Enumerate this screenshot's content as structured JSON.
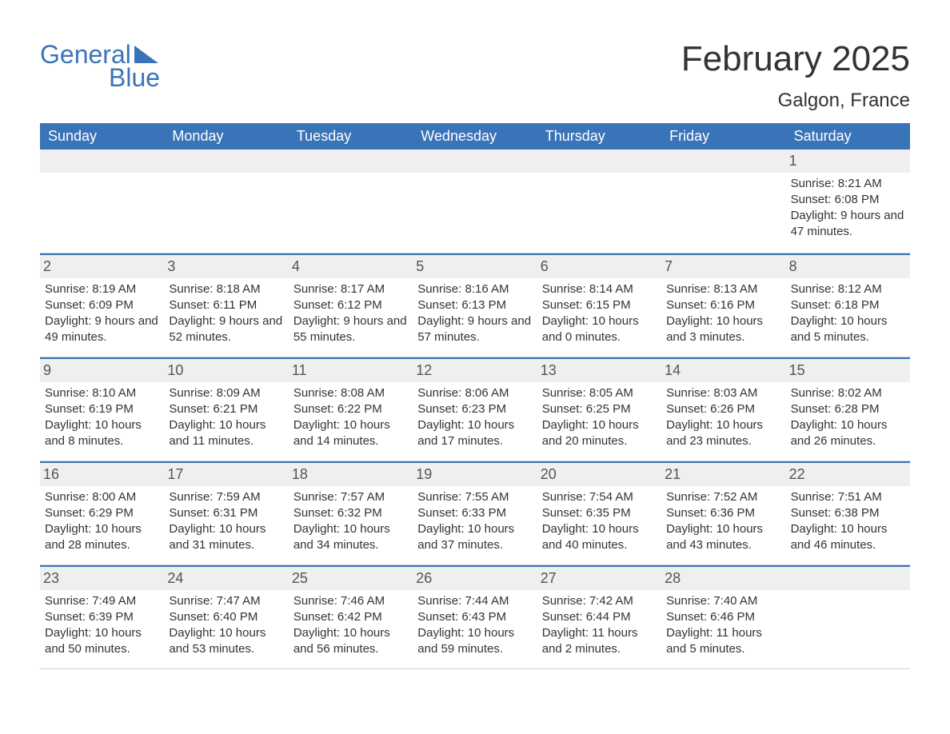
{
  "logo": {
    "part1": "General",
    "part2": "Blue"
  },
  "title": "February 2025",
  "location": "Galgon, France",
  "colors": {
    "accent": "#3a74b8",
    "header_bg": "#3a74b8",
    "header_text": "#ffffff",
    "daynum_bg": "#efefef",
    "text": "#333333",
    "rule": "#cfcfcf",
    "bg": "#ffffff"
  },
  "daynames": [
    "Sunday",
    "Monday",
    "Tuesday",
    "Wednesday",
    "Thursday",
    "Friday",
    "Saturday"
  ],
  "type": "table",
  "weeks": [
    [
      {
        "empty": true
      },
      {
        "empty": true
      },
      {
        "empty": true
      },
      {
        "empty": true
      },
      {
        "empty": true
      },
      {
        "empty": true
      },
      {
        "date": "1",
        "sunrise": "Sunrise: 8:21 AM",
        "sunset": "Sunset: 6:08 PM",
        "daylight": "Daylight: 9 hours and 47 minutes."
      }
    ],
    [
      {
        "date": "2",
        "sunrise": "Sunrise: 8:19 AM",
        "sunset": "Sunset: 6:09 PM",
        "daylight": "Daylight: 9 hours and 49 minutes."
      },
      {
        "date": "3",
        "sunrise": "Sunrise: 8:18 AM",
        "sunset": "Sunset: 6:11 PM",
        "daylight": "Daylight: 9 hours and 52 minutes."
      },
      {
        "date": "4",
        "sunrise": "Sunrise: 8:17 AM",
        "sunset": "Sunset: 6:12 PM",
        "daylight": "Daylight: 9 hours and 55 minutes."
      },
      {
        "date": "5",
        "sunrise": "Sunrise: 8:16 AM",
        "sunset": "Sunset: 6:13 PM",
        "daylight": "Daylight: 9 hours and 57 minutes."
      },
      {
        "date": "6",
        "sunrise": "Sunrise: 8:14 AM",
        "sunset": "Sunset: 6:15 PM",
        "daylight": "Daylight: 10 hours and 0 minutes."
      },
      {
        "date": "7",
        "sunrise": "Sunrise: 8:13 AM",
        "sunset": "Sunset: 6:16 PM",
        "daylight": "Daylight: 10 hours and 3 minutes."
      },
      {
        "date": "8",
        "sunrise": "Sunrise: 8:12 AM",
        "sunset": "Sunset: 6:18 PM",
        "daylight": "Daylight: 10 hours and 5 minutes."
      }
    ],
    [
      {
        "date": "9",
        "sunrise": "Sunrise: 8:10 AM",
        "sunset": "Sunset: 6:19 PM",
        "daylight": "Daylight: 10 hours and 8 minutes."
      },
      {
        "date": "10",
        "sunrise": "Sunrise: 8:09 AM",
        "sunset": "Sunset: 6:21 PM",
        "daylight": "Daylight: 10 hours and 11 minutes."
      },
      {
        "date": "11",
        "sunrise": "Sunrise: 8:08 AM",
        "sunset": "Sunset: 6:22 PM",
        "daylight": "Daylight: 10 hours and 14 minutes."
      },
      {
        "date": "12",
        "sunrise": "Sunrise: 8:06 AM",
        "sunset": "Sunset: 6:23 PM",
        "daylight": "Daylight: 10 hours and 17 minutes."
      },
      {
        "date": "13",
        "sunrise": "Sunrise: 8:05 AM",
        "sunset": "Sunset: 6:25 PM",
        "daylight": "Daylight: 10 hours and 20 minutes."
      },
      {
        "date": "14",
        "sunrise": "Sunrise: 8:03 AM",
        "sunset": "Sunset: 6:26 PM",
        "daylight": "Daylight: 10 hours and 23 minutes."
      },
      {
        "date": "15",
        "sunrise": "Sunrise: 8:02 AM",
        "sunset": "Sunset: 6:28 PM",
        "daylight": "Daylight: 10 hours and 26 minutes."
      }
    ],
    [
      {
        "date": "16",
        "sunrise": "Sunrise: 8:00 AM",
        "sunset": "Sunset: 6:29 PM",
        "daylight": "Daylight: 10 hours and 28 minutes."
      },
      {
        "date": "17",
        "sunrise": "Sunrise: 7:59 AM",
        "sunset": "Sunset: 6:31 PM",
        "daylight": "Daylight: 10 hours and 31 minutes."
      },
      {
        "date": "18",
        "sunrise": "Sunrise: 7:57 AM",
        "sunset": "Sunset: 6:32 PM",
        "daylight": "Daylight: 10 hours and 34 minutes."
      },
      {
        "date": "19",
        "sunrise": "Sunrise: 7:55 AM",
        "sunset": "Sunset: 6:33 PM",
        "daylight": "Daylight: 10 hours and 37 minutes."
      },
      {
        "date": "20",
        "sunrise": "Sunrise: 7:54 AM",
        "sunset": "Sunset: 6:35 PM",
        "daylight": "Daylight: 10 hours and 40 minutes."
      },
      {
        "date": "21",
        "sunrise": "Sunrise: 7:52 AM",
        "sunset": "Sunset: 6:36 PM",
        "daylight": "Daylight: 10 hours and 43 minutes."
      },
      {
        "date": "22",
        "sunrise": "Sunrise: 7:51 AM",
        "sunset": "Sunset: 6:38 PM",
        "daylight": "Daylight: 10 hours and 46 minutes."
      }
    ],
    [
      {
        "date": "23",
        "sunrise": "Sunrise: 7:49 AM",
        "sunset": "Sunset: 6:39 PM",
        "daylight": "Daylight: 10 hours and 50 minutes."
      },
      {
        "date": "24",
        "sunrise": "Sunrise: 7:47 AM",
        "sunset": "Sunset: 6:40 PM",
        "daylight": "Daylight: 10 hours and 53 minutes."
      },
      {
        "date": "25",
        "sunrise": "Sunrise: 7:46 AM",
        "sunset": "Sunset: 6:42 PM",
        "daylight": "Daylight: 10 hours and 56 minutes."
      },
      {
        "date": "26",
        "sunrise": "Sunrise: 7:44 AM",
        "sunset": "Sunset: 6:43 PM",
        "daylight": "Daylight: 10 hours and 59 minutes."
      },
      {
        "date": "27",
        "sunrise": "Sunrise: 7:42 AM",
        "sunset": "Sunset: 6:44 PM",
        "daylight": "Daylight: 11 hours and 2 minutes."
      },
      {
        "date": "28",
        "sunrise": "Sunrise: 7:40 AM",
        "sunset": "Sunset: 6:46 PM",
        "daylight": "Daylight: 11 hours and 5 minutes."
      },
      {
        "empty": true
      }
    ]
  ]
}
